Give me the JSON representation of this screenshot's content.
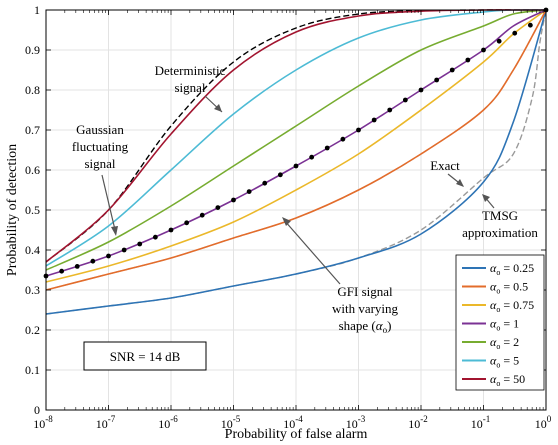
{
  "chart_data": {
    "type": "line",
    "title": "",
    "xlabel": "Probability of false alarm",
    "ylabel": "Probability of detection",
    "xscale": "log",
    "xlim": [
      1e-08,
      1
    ],
    "ylim": [
      0,
      1
    ],
    "grid": true,
    "legend_position": "bottom-right",
    "x_ticks": [
      {
        "value": 1e-08,
        "base": "10",
        "exp": "-8"
      },
      {
        "value": 1e-07,
        "base": "10",
        "exp": "-7"
      },
      {
        "value": 1e-06,
        "base": "10",
        "exp": "-6"
      },
      {
        "value": 1e-05,
        "base": "10",
        "exp": "-5"
      },
      {
        "value": 0.0001,
        "base": "10",
        "exp": "-4"
      },
      {
        "value": 0.001,
        "base": "10",
        "exp": "-3"
      },
      {
        "value": 0.01,
        "base": "10",
        "exp": "-2"
      },
      {
        "value": 0.1,
        "base": "10",
        "exp": "-1"
      },
      {
        "value": 1,
        "base": "10",
        "exp": "0"
      }
    ],
    "y_ticks": [
      {
        "value": 0,
        "label": "0"
      },
      {
        "value": 0.1,
        "label": "0.1"
      },
      {
        "value": 0.2,
        "label": "0.2"
      },
      {
        "value": 0.3,
        "label": "0.3"
      },
      {
        "value": 0.4,
        "label": "0.4"
      },
      {
        "value": 0.5,
        "label": "0.5"
      },
      {
        "value": 0.6,
        "label": "0.6"
      },
      {
        "value": 0.7,
        "label": "0.7"
      },
      {
        "value": 0.8,
        "label": "0.8"
      },
      {
        "value": 0.9,
        "label": "0.9"
      },
      {
        "value": 1,
        "label": "1"
      }
    ],
    "x": [
      1e-08,
      1e-07,
      1e-06,
      1e-05,
      0.0001,
      0.001,
      0.01,
      0.1,
      0.3,
      1
    ],
    "series": [
      {
        "name": "0.25",
        "color": "#2e74b5",
        "values": [
          0.24,
          0.26,
          0.28,
          0.31,
          0.34,
          0.38,
          0.44,
          0.57,
          0.72,
          1.0
        ]
      },
      {
        "name": "0.5",
        "color": "#e36c2b",
        "values": [
          0.3,
          0.34,
          0.38,
          0.43,
          0.48,
          0.55,
          0.64,
          0.75,
          0.85,
          1.0
        ]
      },
      {
        "name": "0.75",
        "color": "#ebb82a",
        "values": [
          0.32,
          0.36,
          0.41,
          0.47,
          0.55,
          0.64,
          0.75,
          0.87,
          0.94,
          1.0
        ]
      },
      {
        "name": "1",
        "color": "#7b3294",
        "values": [
          0.335,
          0.385,
          0.45,
          0.525,
          0.61,
          0.7,
          0.8,
          0.9,
          0.96,
          1.0
        ]
      },
      {
        "name": "2",
        "color": "#77ac30",
        "values": [
          0.35,
          0.42,
          0.51,
          0.61,
          0.71,
          0.81,
          0.9,
          0.96,
          0.99,
          1.0
        ]
      },
      {
        "name": "5",
        "color": "#4dbbd5",
        "values": [
          0.36,
          0.46,
          0.6,
          0.74,
          0.85,
          0.93,
          0.975,
          0.995,
          1.0,
          1.0
        ]
      },
      {
        "name": "50",
        "color": "#a2142f",
        "values": [
          0.37,
          0.5,
          0.69,
          0.85,
          0.945,
          0.985,
          0.997,
          1.0,
          1.0,
          1.0
        ]
      }
    ],
    "dashed_series": [
      {
        "name": "deterministic",
        "color": "#000000",
        "x": [
          1e-08,
          1e-07,
          1e-06,
          1e-05,
          0.0001,
          0.001,
          0.01,
          0.1,
          1
        ],
        "values": [
          0.37,
          0.5,
          0.71,
          0.87,
          0.955,
          0.99,
          0.998,
          1.0,
          1.0
        ]
      },
      {
        "name": "tmsg-0.25",
        "color": "#9a9a9a",
        "x": [
          1e-08,
          1e-07,
          1e-06,
          1e-05,
          0.0001,
          0.001,
          0.01,
          0.1,
          0.3,
          0.6,
          0.8,
          1
        ],
        "values": [
          0.24,
          0.26,
          0.28,
          0.31,
          0.34,
          0.38,
          0.45,
          0.58,
          0.64,
          0.78,
          0.92,
          1.0
        ]
      },
      {
        "name": "tmsg-0.5",
        "color": "#b8b8b8",
        "x": [
          1e-08,
          1e-07,
          1e-06,
          1e-05,
          0.0001,
          0.001,
          0.01,
          0.1,
          0.3,
          1
        ],
        "values": [
          0.3,
          0.34,
          0.38,
          0.43,
          0.48,
          0.55,
          0.64,
          0.75,
          0.85,
          1.0
        ]
      }
    ],
    "markers": {
      "color": "#000000",
      "x": [
        1e-08,
        1.78e-08,
        3.16e-08,
        5.62e-08,
        1e-07,
        1.78e-07,
        3.16e-07,
        5.62e-07,
        1e-06,
        1.78e-06,
        3.16e-06,
        5.62e-06,
        1e-05,
        1.78e-05,
        3.16e-05,
        5.62e-05,
        0.0001,
        0.000178,
        0.000316,
        0.000562,
        0.001,
        0.00178,
        0.00316,
        0.00562,
        0.01,
        0.0178,
        0.0316,
        0.0562,
        0.1,
        0.178,
        0.316,
        0.562,
        1
      ],
      "values": [
        0.335,
        0.347,
        0.359,
        0.372,
        0.385,
        0.4,
        0.415,
        0.432,
        0.45,
        0.468,
        0.487,
        0.506,
        0.525,
        0.546,
        0.567,
        0.588,
        0.61,
        0.632,
        0.655,
        0.677,
        0.7,
        0.725,
        0.75,
        0.775,
        0.8,
        0.825,
        0.85,
        0.875,
        0.9,
        0.922,
        0.942,
        0.962,
        1.0
      ]
    },
    "legend": {
      "base": "α",
      "sub": "o",
      "prefix": " = ",
      "entries": [
        "0.25",
        "0.5",
        "0.75",
        "1",
        "2",
        "5",
        "50"
      ]
    },
    "annotations": {
      "deterministic": [
        "Deterministic",
        "signal"
      ],
      "gaussian": [
        "Gaussian",
        "fluctuating",
        "signal"
      ],
      "exact": "Exact",
      "tmsg": [
        "TMSG",
        "approximation"
      ],
      "gfi": [
        "GFI signal",
        "with varying"
      ],
      "gfi_shape_prefix": "shape (",
      "gfi_shape_base": "α",
      "gfi_shape_sub": "o",
      "gfi_shape_suffix": ")",
      "snr": "SNR = 14 dB"
    }
  }
}
